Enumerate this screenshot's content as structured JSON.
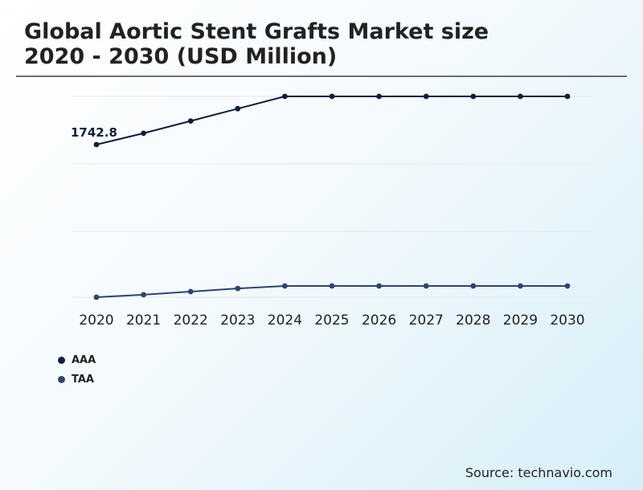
{
  "title_line1": "Global Aortic Stent Grafts Market size",
  "title_line2": "2020 - 2030 (USD Million)",
  "source": "Source: technavio.com",
  "colors": {
    "AAA": "#0d1f3c",
    "TAA": "#2e4373"
  },
  "chart_data": {
    "type": "line",
    "title": "Global Aortic Stent Grafts Market size 2020 - 2030 (USD Million)",
    "xlabel": "",
    "ylabel": "",
    "categories": [
      "2020",
      "2021",
      "2022",
      "2023",
      "2024",
      "2025",
      "2026",
      "2027",
      "2028",
      "2029",
      "2030"
    ],
    "series": [
      {
        "name": "AAA",
        "values": [
          1742.8,
          1835,
          1935,
          2035,
          2135,
          2135,
          2135,
          2135,
          2135,
          2135,
          2135
        ]
      },
      {
        "name": "TAA",
        "values": [
          10,
          30,
          55,
          80,
          100,
          100,
          100,
          100,
          100,
          100,
          100
        ]
      }
    ],
    "data_labels": [
      {
        "series": "AAA",
        "index": 0,
        "text": "1742.8"
      }
    ],
    "ylim": [
      0,
      1650
    ],
    "grid": true,
    "legend": "bottom-left"
  }
}
